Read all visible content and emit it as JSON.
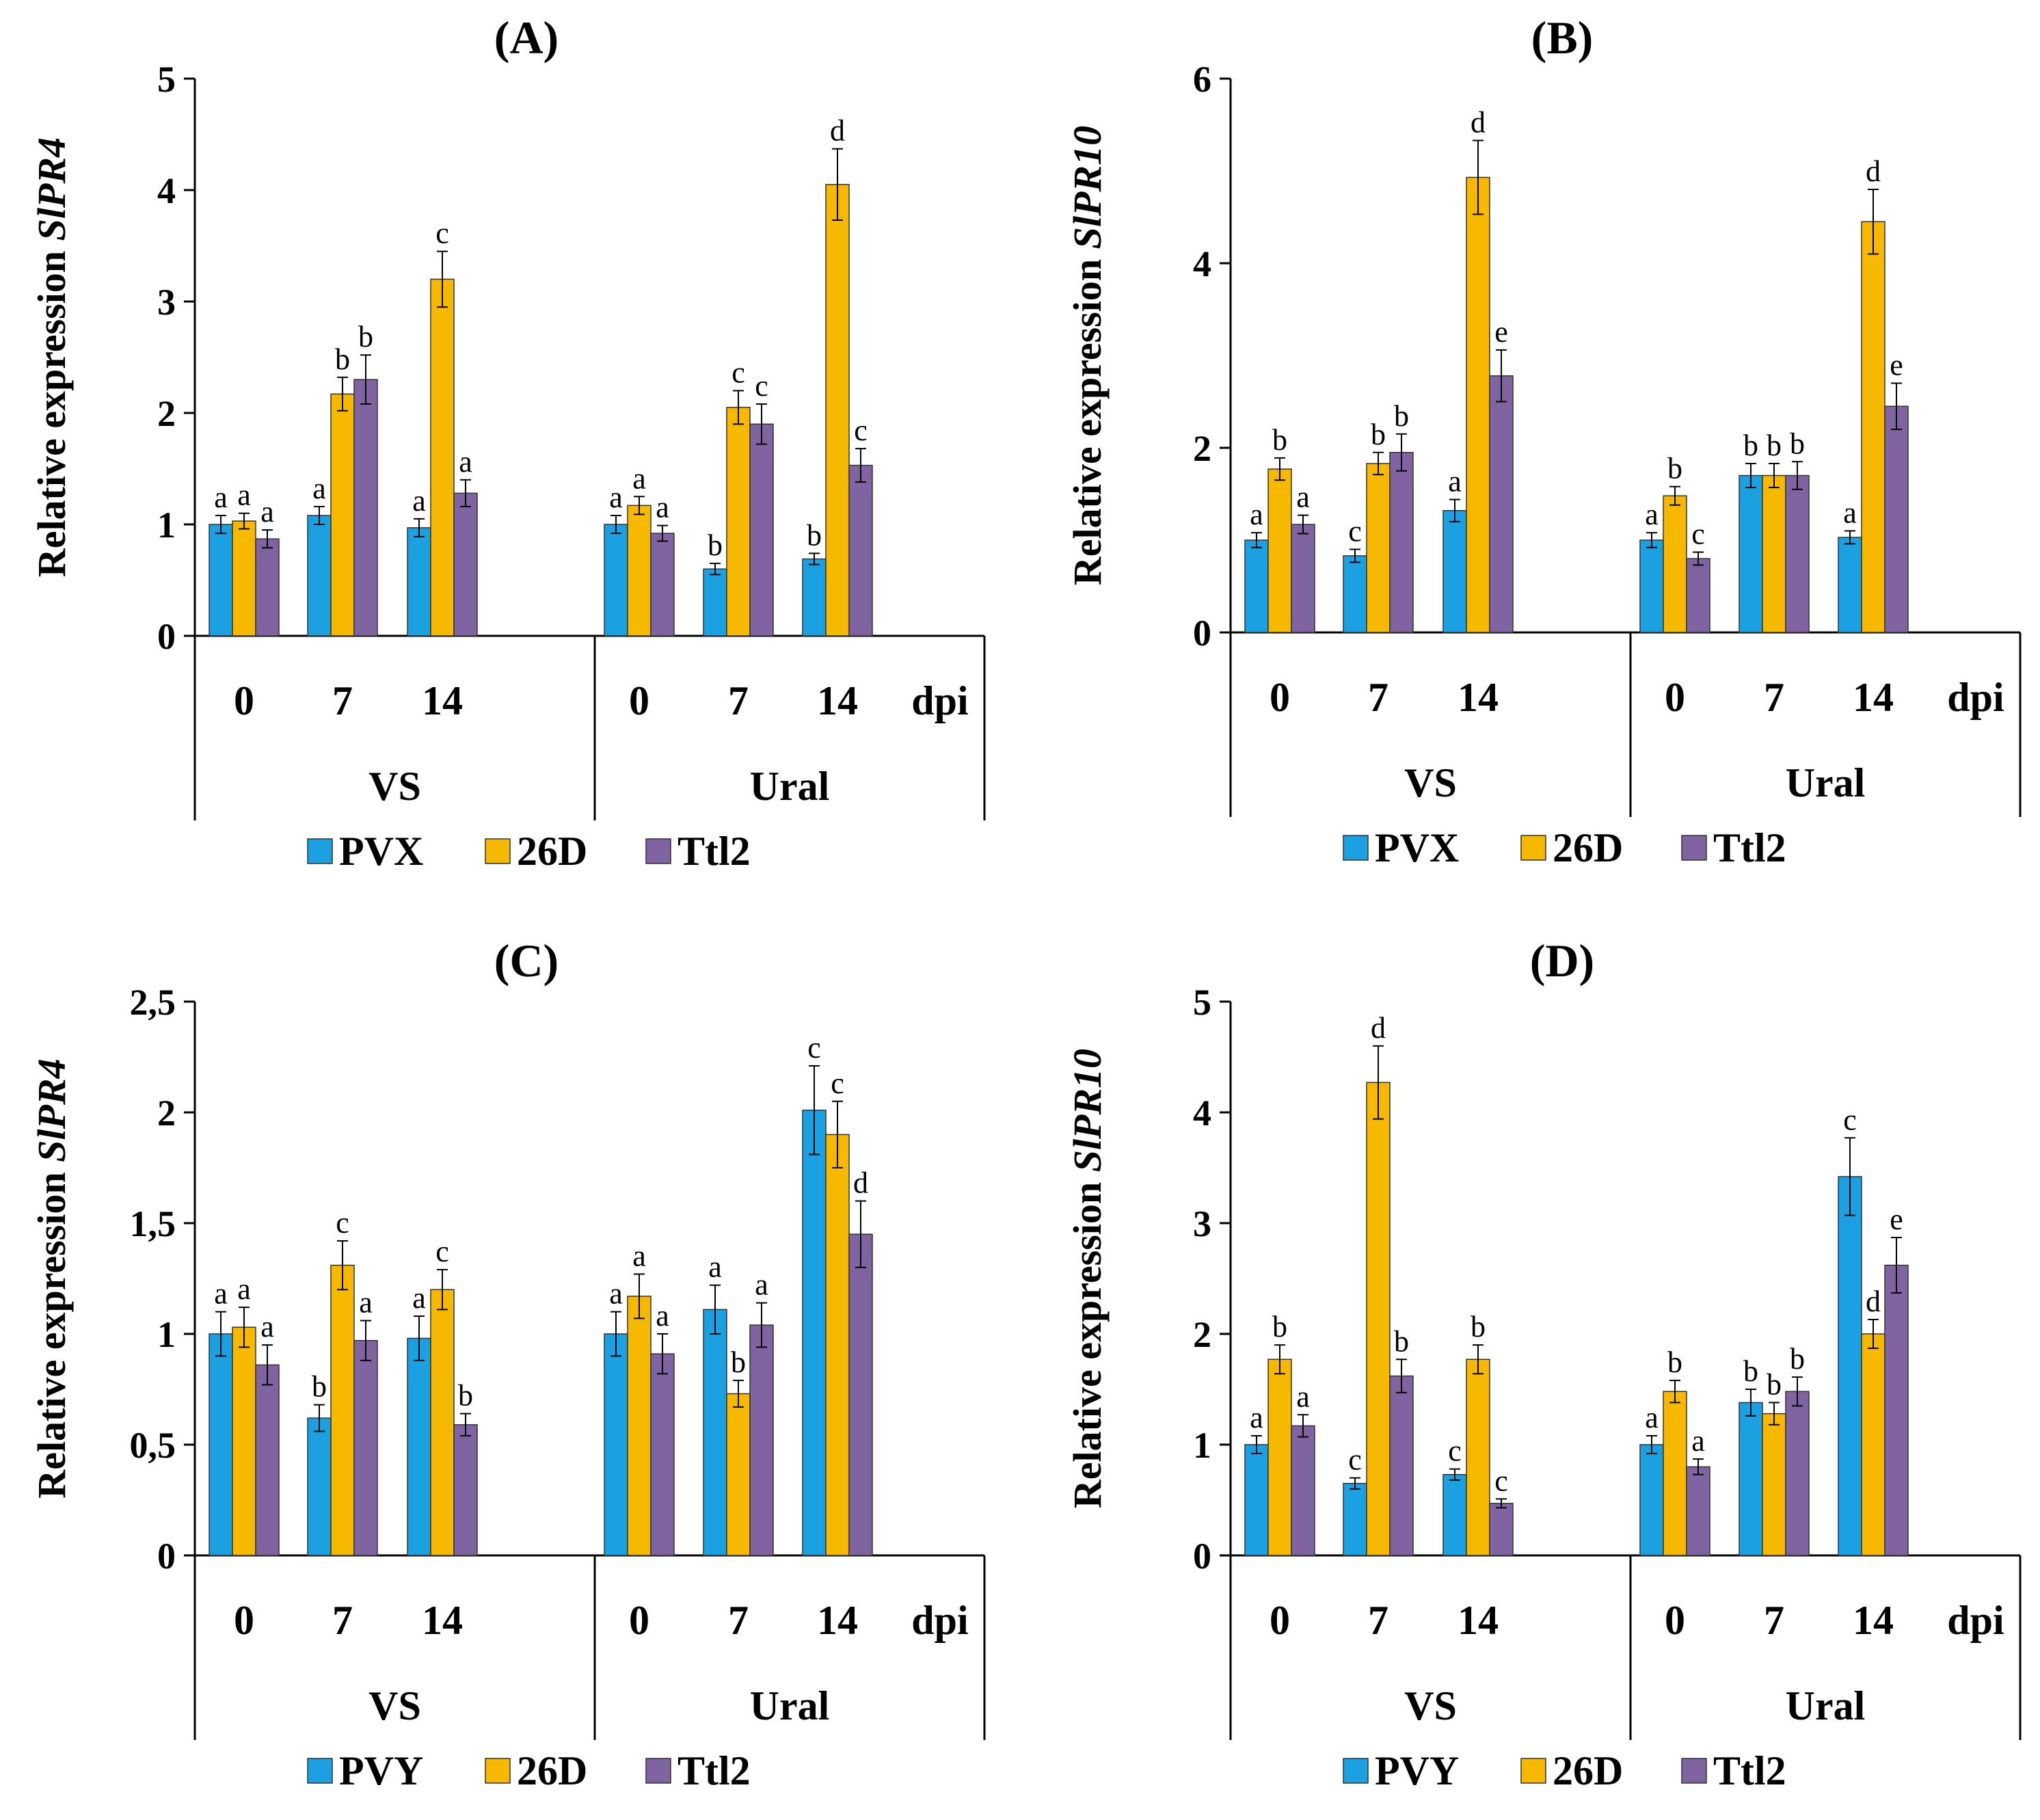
{
  "colors": {
    "PVX": "#1ba1e2",
    "PVY": "#1ba1e2",
    "26D": "#f7b800",
    "Ttl2": "#8064a2",
    "axis": "#000000"
  },
  "chart_data": [
    {
      "panel": "(A)",
      "type": "bar",
      "ylabel_prefix": "Relative expression ",
      "ylabel_gene": "SlPR4",
      "ylim": [
        0,
        5
      ],
      "yticks": [
        "0",
        "1",
        "2",
        "3",
        "4",
        "5"
      ],
      "ytick_values": [
        0,
        1,
        2,
        3,
        4,
        5
      ],
      "xunit": "dpi",
      "groups": [
        "VS",
        "Ural"
      ],
      "timepoints": [
        "0",
        "7",
        "14"
      ],
      "legend": [
        "PVX",
        "26D",
        "Ttl2"
      ],
      "series": [
        {
          "name": "PVX",
          "values": [
            1.0,
            1.08,
            0.97,
            1.0,
            0.6,
            0.69
          ],
          "errors": [
            0.08,
            0.08,
            0.08,
            0.08,
            0.05,
            0.05
          ],
          "letters": [
            "a",
            "a",
            "a",
            "a",
            "b",
            "b"
          ]
        },
        {
          "name": "26D",
          "values": [
            1.03,
            2.17,
            3.2,
            1.17,
            2.05,
            4.05
          ],
          "errors": [
            0.07,
            0.15,
            0.25,
            0.08,
            0.15,
            0.32
          ],
          "letters": [
            "a",
            "b",
            "c",
            "a",
            "c",
            "d"
          ]
        },
        {
          "name": "Ttl2",
          "values": [
            0.87,
            2.3,
            1.28,
            0.92,
            1.9,
            1.53
          ],
          "errors": [
            0.08,
            0.22,
            0.12,
            0.07,
            0.18,
            0.15
          ],
          "letters": [
            "a",
            "b",
            "a",
            "a",
            "c",
            "c"
          ]
        }
      ]
    },
    {
      "panel": "(B)",
      "type": "bar",
      "ylabel_prefix": "Relative expression ",
      "ylabel_gene": "SlPR10",
      "ylim": [
        0,
        6
      ],
      "yticks": [
        "0",
        "2",
        "4",
        "6"
      ],
      "ytick_values": [
        0,
        2,
        4,
        6
      ],
      "xunit": "dpi",
      "groups": [
        "VS",
        "Ural"
      ],
      "timepoints": [
        "0",
        "7",
        "14"
      ],
      "legend": [
        "PVX",
        "26D",
        "Ttl2"
      ],
      "series": [
        {
          "name": "PVX",
          "values": [
            1.0,
            0.83,
            1.32,
            1.0,
            1.7,
            1.03
          ],
          "errors": [
            0.08,
            0.07,
            0.12,
            0.08,
            0.13,
            0.07
          ],
          "letters": [
            "a",
            "c",
            "a",
            "a",
            "b",
            "a"
          ]
        },
        {
          "name": "26D",
          "values": [
            1.77,
            1.83,
            4.93,
            1.48,
            1.7,
            4.45
          ],
          "errors": [
            0.12,
            0.12,
            0.4,
            0.1,
            0.13,
            0.35
          ],
          "letters": [
            "b",
            "b",
            "d",
            "b",
            "b",
            "d"
          ]
        },
        {
          "name": "Ttl2",
          "values": [
            1.17,
            1.95,
            2.78,
            0.8,
            1.7,
            2.45
          ],
          "errors": [
            0.1,
            0.2,
            0.28,
            0.07,
            0.15,
            0.25
          ],
          "letters": [
            "a",
            "b",
            "e",
            "c",
            "b",
            "e"
          ]
        }
      ]
    },
    {
      "panel": "(C)",
      "type": "bar",
      "ylabel_prefix": "Relative expression ",
      "ylabel_gene": "SlPR4",
      "ylim": [
        0,
        2.5
      ],
      "yticks": [
        "0",
        "0,5",
        "1",
        "1,5",
        "2",
        "2,5"
      ],
      "ytick_values": [
        0,
        0.5,
        1,
        1.5,
        2,
        2.5
      ],
      "xunit": "dpi",
      "groups": [
        "VS",
        "Ural"
      ],
      "timepoints": [
        "0",
        "7",
        "14"
      ],
      "legend": [
        "PVY",
        "26D",
        "Ttl2"
      ],
      "series": [
        {
          "name": "PVY",
          "values": [
            1.0,
            0.62,
            0.98,
            1.0,
            1.11,
            2.01
          ],
          "errors": [
            0.1,
            0.06,
            0.1,
            0.1,
            0.11,
            0.2
          ],
          "letters": [
            "a",
            "b",
            "a",
            "a",
            "a",
            "c"
          ]
        },
        {
          "name": "26D",
          "values": [
            1.03,
            1.31,
            1.2,
            1.17,
            0.73,
            1.9
          ],
          "errors": [
            0.09,
            0.11,
            0.09,
            0.1,
            0.06,
            0.15
          ],
          "letters": [
            "a",
            "c",
            "c",
            "a",
            "b",
            "c"
          ]
        },
        {
          "name": "Ttl2",
          "values": [
            0.86,
            0.97,
            0.59,
            0.91,
            1.04,
            1.45
          ],
          "errors": [
            0.09,
            0.09,
            0.05,
            0.09,
            0.1,
            0.15
          ],
          "letters": [
            "a",
            "a",
            "b",
            "a",
            "a",
            "d"
          ]
        }
      ]
    },
    {
      "panel": "(D)",
      "type": "bar",
      "ylabel_prefix": "Relative expression ",
      "ylabel_gene": "SlPR10",
      "ylim": [
        0,
        5
      ],
      "yticks": [
        "0",
        "1",
        "2",
        "3",
        "4",
        "5"
      ],
      "ytick_values": [
        0,
        1,
        2,
        3,
        4,
        5
      ],
      "xunit": "dpi",
      "groups": [
        "VS",
        "Ural"
      ],
      "timepoints": [
        "0",
        "7",
        "14"
      ],
      "legend": [
        "PVY",
        "26D",
        "Ttl2"
      ],
      "series": [
        {
          "name": "PVY",
          "values": [
            1.0,
            0.65,
            0.73,
            1.0,
            1.38,
            3.42
          ],
          "errors": [
            0.08,
            0.05,
            0.05,
            0.08,
            0.12,
            0.35
          ],
          "letters": [
            "a",
            "c",
            "c",
            "a",
            "b",
            "c"
          ]
        },
        {
          "name": "26D",
          "values": [
            1.77,
            4.27,
            1.77,
            1.48,
            1.28,
            2.0
          ],
          "errors": [
            0.13,
            0.33,
            0.13,
            0.1,
            0.1,
            0.13
          ],
          "letters": [
            "b",
            "d",
            "b",
            "b",
            "b",
            "d"
          ]
        },
        {
          "name": "Ttl2",
          "values": [
            1.17,
            1.62,
            0.47,
            0.8,
            1.48,
            2.62
          ],
          "errors": [
            0.1,
            0.15,
            0.04,
            0.07,
            0.13,
            0.25
          ],
          "letters": [
            "a",
            "b",
            "c",
            "a",
            "b",
            "e"
          ]
        }
      ]
    }
  ]
}
